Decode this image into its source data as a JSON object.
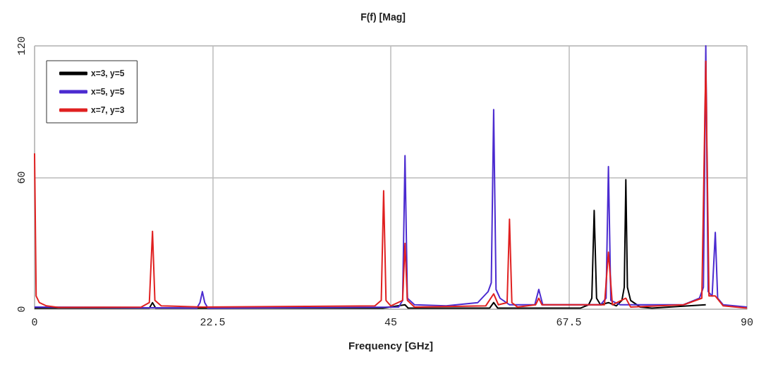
{
  "chart_data": {
    "type": "line",
    "title": "F(f) [Mag]",
    "xlabel": "Frequency [GHz]",
    "xlim": [
      0,
      90
    ],
    "xticks": [
      0,
      22.5,
      45,
      67.5,
      90
    ],
    "ylim": [
      0,
      120
    ],
    "yticks": [
      0,
      60,
      120
    ],
    "grid": true,
    "legend": "top left",
    "marker": "none",
    "line_style": "solid",
    "series": [
      {
        "name": "x=3, y=5",
        "color": "#000000",
        "x": [
          0,
          14.5,
          14.9,
          15.3,
          44,
          46.8,
          47.2,
          57.5,
          58,
          58.5,
          69,
          70,
          70.4,
          70.7,
          71,
          71.5,
          72.5,
          73.5,
          74.2,
          74.5,
          74.7,
          74.9,
          75.3,
          76.5,
          78,
          84.8
        ],
        "values": [
          0.5,
          0.5,
          3,
          0.5,
          0.5,
          2,
          0.5,
          0.5,
          3,
          0.5,
          0.5,
          2,
          5,
          45,
          5,
          2,
          3,
          1.5,
          4,
          10,
          59,
          10,
          4,
          1,
          0.5,
          2
        ]
      },
      {
        "name": "x=5, y=5",
        "color": "#4b2bd0",
        "x": [
          0,
          20.5,
          20.9,
          21.2,
          21.5,
          21.9,
          46,
          46.5,
          46.8,
          47.1,
          48,
          52,
          56,
          57.3,
          57.7,
          58,
          58.3,
          58.8,
          60,
          63.2,
          63.7,
          64.2,
          71.5,
          72.2,
          72.5,
          72.8,
          74,
          82,
          84,
          84.5,
          84.8,
          85.1,
          85.6,
          86,
          86.3,
          87,
          90
        ],
        "values": [
          1,
          0.5,
          3,
          8,
          3,
          0.5,
          1,
          4,
          70,
          5,
          2,
          1.5,
          3,
          8,
          12,
          91,
          9,
          5,
          2,
          2,
          9,
          2,
          2,
          5,
          65,
          4,
          2,
          2,
          5,
          10,
          120,
          8,
          6,
          35,
          5,
          2,
          1
        ]
      },
      {
        "name": "x=7, y=3",
        "color": "#e02020",
        "x": [
          0,
          0.2,
          0.6,
          1.5,
          3,
          13.5,
          14.5,
          14.9,
          15.2,
          16,
          21.2,
          43,
          43.8,
          44.1,
          44.4,
          45,
          46.5,
          46.8,
          47.1,
          48,
          57,
          58,
          58.6,
          59.7,
          60,
          60.3,
          61,
          63.3,
          63.7,
          64.1,
          72,
          72.5,
          73,
          74.7,
          75.3,
          82,
          84.3,
          84.8,
          85.2,
          86,
          87,
          90
        ],
        "values": [
          71,
          6,
          3,
          1.5,
          0.8,
          1,
          3,
          35.5,
          4,
          1.5,
          1,
          1.5,
          4,
          54,
          4,
          1.5,
          4,
          30,
          4,
          1,
          1.5,
          7,
          2,
          3,
          41,
          3,
          1,
          2,
          5,
          2,
          2,
          26,
          2,
          5,
          1,
          2,
          5,
          113,
          6,
          6,
          1.5,
          0.5
        ]
      }
    ]
  }
}
